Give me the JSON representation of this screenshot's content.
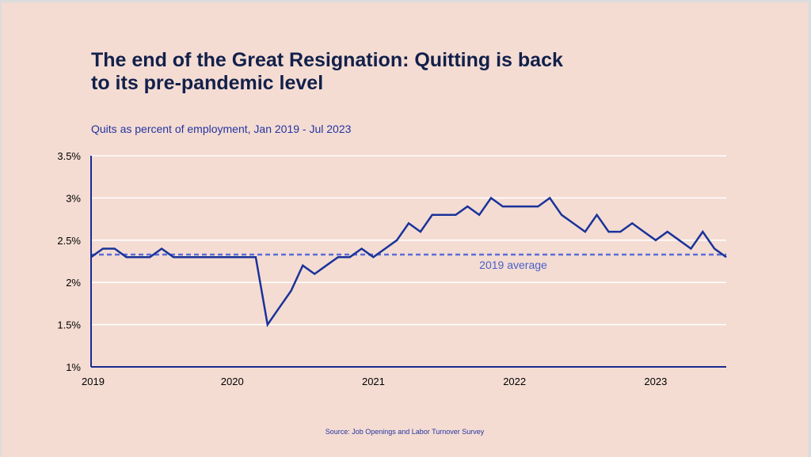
{
  "title": "The end of the Great Resignation: Quitting is back to its pre-pandemic level",
  "subtitle": "Quits as percent of employment, Jan 2019 - Jul 2023",
  "source": "Source: Job Openings and Labor Turnover Survey",
  "chart_data": {
    "type": "line",
    "x_start": "2019-01",
    "x_end": "2023-07",
    "x_ticks": [
      "2019",
      "2020",
      "2021",
      "2022",
      "2023"
    ],
    "y_ticks": [
      "3.5%",
      "3%",
      "2.5%",
      "2%",
      "1.5%",
      "1%"
    ],
    "ylim": [
      1,
      3.5
    ],
    "grid": "horizontal",
    "series": [
      {
        "values": [
          2.3,
          2.4,
          2.4,
          2.3,
          2.3,
          2.3,
          2.4,
          2.3,
          2.3,
          2.3,
          2.3,
          2.3,
          2.3,
          2.3,
          2.3,
          1.5,
          1.7,
          1.9,
          2.2,
          2.1,
          2.2,
          2.3,
          2.3,
          2.4,
          2.3,
          2.4,
          2.5,
          2.7,
          2.6,
          2.8,
          2.8,
          2.8,
          2.9,
          2.8,
          3.0,
          2.9,
          2.9,
          2.9,
          2.9,
          3.0,
          2.8,
          2.7,
          2.6,
          2.8,
          2.6,
          2.6,
          2.7,
          2.6,
          2.5,
          2.6,
          2.5,
          2.4,
          2.6,
          2.4,
          2.3
        ],
        "color": "#1a3399"
      }
    ],
    "reference_line": {
      "value": 2.33,
      "label": "2019 average",
      "color": "#5a6fd6"
    },
    "colors": {
      "background": "#f4dcd3",
      "grid": "#ffffff",
      "axis": "#1a2a8f"
    }
  }
}
